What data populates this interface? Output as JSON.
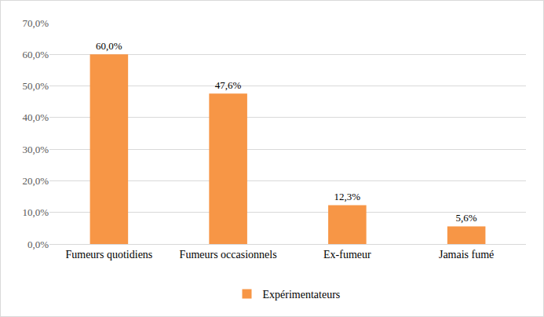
{
  "chart_data": {
    "type": "bar",
    "categories": [
      "Fumeurs quotidiens",
      "Fumeurs occasionnels",
      "Ex-fumeur",
      "Jamais fumé"
    ],
    "series": [
      {
        "name": "Expérimentateurs",
        "color": "#f79646",
        "values": [
          60.0,
          47.6,
          12.3,
          5.6
        ],
        "value_labels": [
          "60,0%",
          "47,6%",
          "12,3%",
          "5,6%"
        ]
      }
    ],
    "ylim": [
      0,
      70
    ],
    "yticks": [
      {
        "value": 0,
        "label": "0,0%"
      },
      {
        "value": 10,
        "label": "10,0%"
      },
      {
        "value": 20,
        "label": "20,0%"
      },
      {
        "value": 30,
        "label": "30,0%"
      },
      {
        "value": 40,
        "label": "40,0%"
      },
      {
        "value": 50,
        "label": "50,0%"
      },
      {
        "value": 60,
        "label": "60,0%"
      },
      {
        "value": 70,
        "label": "70,0%"
      }
    ],
    "grid": true,
    "legend": "bottom",
    "data_labels": true
  }
}
